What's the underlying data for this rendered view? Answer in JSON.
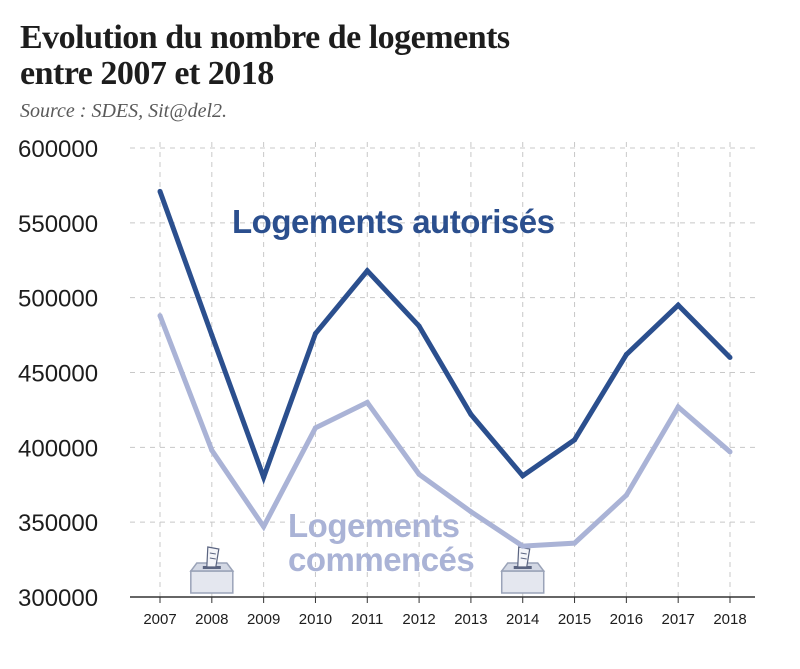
{
  "title_line1": "Evolution du nombre de logements",
  "title_line2": "entre 2007 et 2018",
  "source": "Source : SDES, Sit@del2.",
  "colors": {
    "autorises": "#2b4f8e",
    "commences": "#aab3d6",
    "grid": "#c8c8c8",
    "icon": "#9aa3b8"
  },
  "icons": [
    {
      "name": "ballot-box-icon",
      "year": "2008"
    },
    {
      "name": "ballot-box-icon",
      "year": "2014"
    }
  ],
  "chart_data": {
    "type": "line",
    "title": "Evolution du nombre de logements entre 2007 et 2018",
    "categories": [
      "2007",
      "2008",
      "2009",
      "2010",
      "2011",
      "2012",
      "2013",
      "2014",
      "2015",
      "2016",
      "2017",
      "2018"
    ],
    "ylim": [
      300000,
      600000
    ],
    "yticks": [
      "300000",
      "350000",
      "400000",
      "450000",
      "500000",
      "550000",
      "600000"
    ],
    "grid": true,
    "series": [
      {
        "name": "Logements autorisés",
        "values": [
          571000,
          475000,
          380000,
          476000,
          518000,
          481000,
          422000,
          381000,
          405000,
          462000,
          495000,
          460000
        ]
      },
      {
        "name": "Logements commencés",
        "label_lines": [
          "Logements",
          "commencés"
        ],
        "values": [
          488000,
          398000,
          347000,
          413000,
          430000,
          382000,
          357000,
          334000,
          336000,
          368000,
          427000,
          397000
        ]
      }
    ]
  }
}
